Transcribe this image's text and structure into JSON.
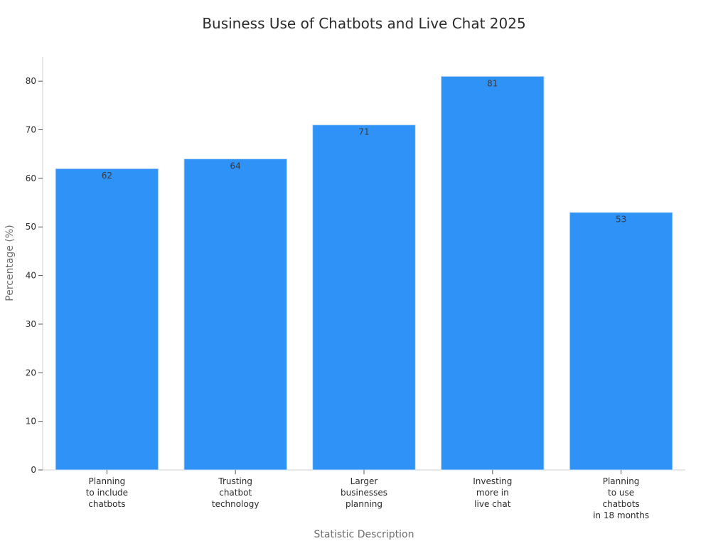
{
  "chart_data": {
    "type": "bar",
    "title": "Business Use of Chatbots and Live Chat 2025",
    "xlabel": "Statistic Description",
    "ylabel": "Percentage (%)",
    "categories": [
      [
        "Planning",
        "to include",
        "chatbots"
      ],
      [
        "Trusting",
        "chatbot",
        "technology"
      ],
      [
        "Larger",
        "businesses",
        "planning"
      ],
      [
        "Investing",
        "more in",
        "live chat"
      ],
      [
        "Planning",
        "to use",
        "chatbots",
        "in 18 months"
      ]
    ],
    "values": [
      62,
      64,
      71,
      81,
      53
    ],
    "data_labels": [
      "62",
      "64",
      "71",
      "81",
      "53"
    ],
    "ylim": [
      0,
      85
    ],
    "yticks": [
      0,
      10,
      20,
      30,
      40,
      50,
      60,
      70,
      80
    ],
    "grid": false,
    "legend": "none",
    "colors": {
      "bar": "#2f92f7",
      "bar_edge": "#c9dff5"
    }
  }
}
